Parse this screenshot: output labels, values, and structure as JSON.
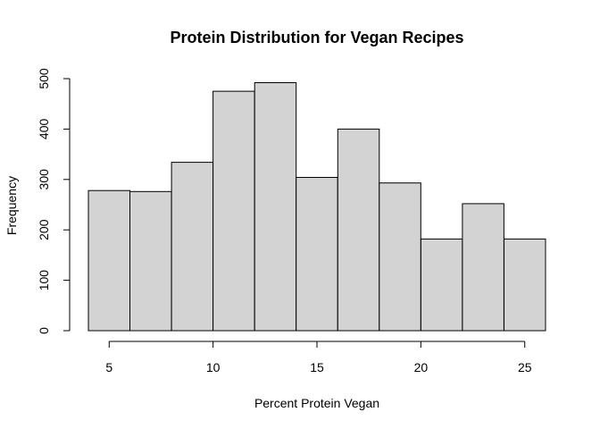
{
  "chart_data": {
    "type": "bar",
    "title": "Protein Distribution for Vegan Recipes",
    "xlabel": "Percent Protein Vegan",
    "ylabel": "Frequency",
    "bins": [
      {
        "start": 4,
        "end": 6,
        "count": 278
      },
      {
        "start": 6,
        "end": 8,
        "count": 276
      },
      {
        "start": 8,
        "end": 10,
        "count": 334
      },
      {
        "start": 10,
        "end": 12,
        "count": 475
      },
      {
        "start": 12,
        "end": 14,
        "count": 492
      },
      {
        "start": 14,
        "end": 16,
        "count": 304
      },
      {
        "start": 16,
        "end": 18,
        "count": 400
      },
      {
        "start": 18,
        "end": 20,
        "count": 293
      },
      {
        "start": 20,
        "end": 22,
        "count": 182
      },
      {
        "start": 22,
        "end": 24,
        "count": 252
      },
      {
        "start": 24,
        "end": 26,
        "count": 182
      }
    ],
    "xlim": [
      4,
      26
    ],
    "ylim": [
      0,
      500
    ],
    "x_ticks": [
      5,
      10,
      15,
      20,
      25
    ],
    "y_ticks": [
      0,
      100,
      200,
      300,
      400,
      500
    ],
    "bar_color": "#d3d3d3",
    "grid": false,
    "legend": "none"
  }
}
